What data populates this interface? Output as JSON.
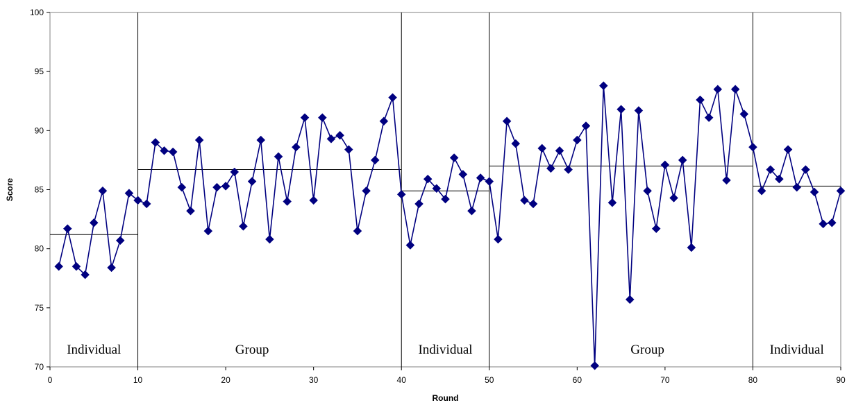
{
  "chart_data": {
    "type": "line",
    "title": "",
    "xlabel": "Round",
    "ylabel": "Score",
    "xlim": [
      0,
      90
    ],
    "ylim": [
      70,
      100
    ],
    "grid": false,
    "x_ticks": [
      0,
      10,
      20,
      30,
      40,
      50,
      60,
      70,
      80,
      90
    ],
    "y_ticks": [
      70,
      75,
      80,
      85,
      90,
      95,
      100
    ],
    "series_color": "#000080",
    "series": [
      {
        "x": [
          1,
          2,
          3,
          4,
          5,
          6,
          7,
          8,
          9,
          10,
          11,
          12,
          13,
          14,
          15,
          16,
          17,
          18,
          19,
          20,
          21,
          22,
          23,
          24,
          25,
          26,
          27,
          28,
          29,
          30,
          31,
          32,
          33,
          34,
          35,
          36,
          37,
          38,
          39,
          40,
          41,
          42,
          43,
          44,
          45,
          46,
          47,
          48,
          49,
          50,
          51,
          52,
          53,
          54,
          55,
          56,
          57,
          58,
          59,
          60,
          61,
          62,
          63,
          64,
          65,
          66,
          67,
          68,
          69,
          70,
          71,
          72,
          73,
          74,
          75,
          76,
          77,
          78,
          79,
          80,
          81,
          82,
          83,
          84,
          85,
          86,
          87,
          88,
          89,
          90
        ],
        "values": [
          78.5,
          81.7,
          78.5,
          77.8,
          82.2,
          84.9,
          78.4,
          80.7,
          84.7,
          84.1,
          83.8,
          89.0,
          88.3,
          88.2,
          85.2,
          83.2,
          89.2,
          81.5,
          85.2,
          85.3,
          86.5,
          81.9,
          85.7,
          89.2,
          80.8,
          87.8,
          84.0,
          88.6,
          91.1,
          84.1,
          91.1,
          89.3,
          89.6,
          88.4,
          81.5,
          84.9,
          87.5,
          90.8,
          92.8,
          84.6,
          80.3,
          83.8,
          85.9,
          85.1,
          84.2,
          87.7,
          86.3,
          83.2,
          86.0,
          85.7,
          80.8,
          90.8,
          88.9,
          84.1,
          83.8,
          88.5,
          86.8,
          88.3,
          86.7,
          89.2,
          90.4,
          70.1,
          93.8,
          83.9,
          91.8,
          75.7,
          91.7,
          84.9,
          81.7,
          87.1,
          84.3,
          87.5,
          80.1,
          92.6,
          91.1,
          93.5,
          85.8,
          93.5,
          91.4,
          88.6,
          84.9,
          86.7,
          85.9,
          88.4,
          85.2,
          86.7,
          84.8,
          82.1,
          82.2,
          84.9
        ]
      }
    ],
    "phase_boundaries": [
      10,
      40,
      50,
      80
    ],
    "phases": [
      {
        "label": "Individual",
        "start": 0,
        "end": 10,
        "mean": 81.2,
        "label_x": 5
      },
      {
        "label": "Group",
        "start": 10,
        "end": 40,
        "mean": 86.7,
        "label_x": 23
      },
      {
        "label": "Individual",
        "start": 40,
        "end": 50,
        "mean": 84.9,
        "label_x": 45
      },
      {
        "label": "Group",
        "start": 50,
        "end": 80,
        "mean": 87.0,
        "label_x": 68
      },
      {
        "label": "Individual",
        "start": 80,
        "end": 90,
        "mean": 85.3,
        "label_x": 85
      }
    ]
  }
}
